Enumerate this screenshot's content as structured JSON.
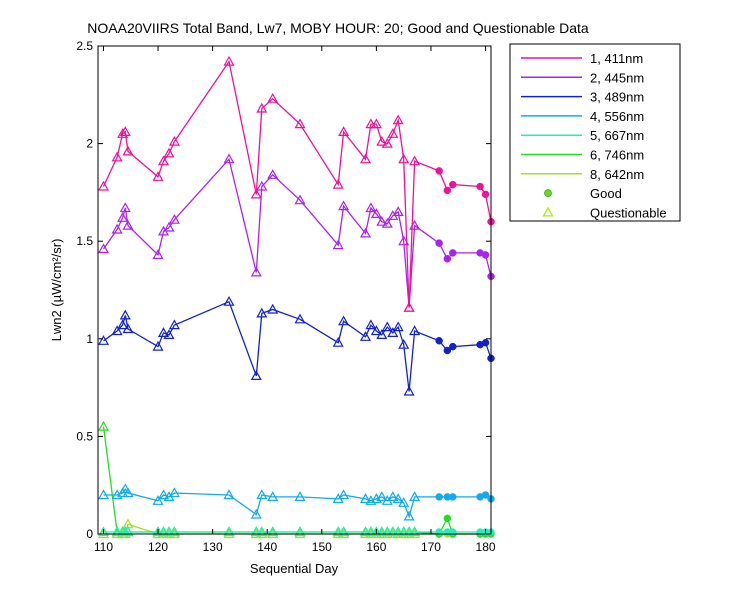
{
  "chart_data": {
    "type": "line",
    "title": "NOAA20VIIRS Total Band, Lw7, MOBY HOUR: 20;  Good and Questionable Data",
    "xlabel": "Sequential Day",
    "ylabel": "Lwn2 (µW/cm²/sr)",
    "xlim": [
      109,
      181
    ],
    "ylim": [
      0,
      2.5
    ],
    "xticks": [
      110,
      120,
      130,
      140,
      150,
      160,
      170,
      180
    ],
    "yticks": [
      0,
      0.5,
      1,
      1.5,
      2,
      2.5
    ],
    "ytick_labels": [
      "0",
      "0.5",
      "1",
      "1.5",
      "2",
      "2.5"
    ],
    "grid": false,
    "legend_position": "outside-right",
    "markers": {
      "good": "Good",
      "questionable": "Questionable"
    },
    "marker_colors": {
      "good": "#66dd22",
      "questionable": "#aaee00"
    },
    "x": [
      110,
      112.5,
      113.5,
      114,
      114.5,
      120,
      121,
      122,
      123,
      133,
      138,
      139,
      141,
      146,
      153,
      154,
      158,
      159,
      160,
      161,
      162,
      163,
      164,
      165,
      166,
      167,
      171.5,
      173,
      174,
      179,
      180,
      181
    ],
    "quality": [
      "Q",
      "Q",
      "Q",
      "Q",
      "Q",
      "Q",
      "Q",
      "Q",
      "Q",
      "Q",
      "Q",
      "Q",
      "Q",
      "Q",
      "Q",
      "Q",
      "Q",
      "Q",
      "Q",
      "Q",
      "Q",
      "Q",
      "Q",
      "Q",
      "Q",
      "Q",
      "G",
      "G",
      "G",
      "G",
      "G",
      "G"
    ],
    "series": [
      {
        "name": "1, 411nm",
        "color": "#ee1199",
        "values": [
          1.78,
          1.93,
          2.05,
          2.06,
          1.96,
          1.83,
          1.91,
          1.95,
          2.01,
          2.42,
          1.74,
          2.18,
          2.23,
          2.1,
          1.79,
          2.06,
          1.92,
          2.1,
          2.1,
          2.01,
          2.0,
          2.05,
          2.12,
          1.92,
          1.16,
          1.91,
          1.86,
          1.76,
          1.79,
          1.78,
          1.74,
          1.6
        ]
      },
      {
        "name": "2, 445nm",
        "color": "#aa22ee",
        "values": [
          1.46,
          1.56,
          1.62,
          1.67,
          1.58,
          1.43,
          1.55,
          1.57,
          1.61,
          1.92,
          1.34,
          1.78,
          1.84,
          1.71,
          1.48,
          1.68,
          1.54,
          1.67,
          1.64,
          1.6,
          1.59,
          1.63,
          1.65,
          1.5,
          1.16,
          1.58,
          1.49,
          1.41,
          1.44,
          1.44,
          1.43,
          1.32
        ]
      },
      {
        "name": "3, 489nm",
        "color": "#1122cc",
        "values": [
          0.99,
          1.04,
          1.07,
          1.12,
          1.05,
          0.96,
          1.03,
          1.02,
          1.07,
          1.19,
          0.81,
          1.13,
          1.15,
          1.1,
          0.98,
          1.09,
          1.01,
          1.07,
          1.04,
          1.02,
          1.06,
          1.03,
          1.06,
          0.97,
          0.73,
          1.04,
          0.99,
          0.94,
          0.96,
          0.97,
          0.98,
          0.9
        ]
      },
      {
        "name": "4, 556nm",
        "color": "#11aaee",
        "values": [
          0.2,
          0.2,
          0.21,
          0.23,
          0.21,
          0.17,
          0.2,
          0.19,
          0.21,
          0.2,
          0.1,
          0.2,
          0.19,
          0.19,
          0.18,
          0.2,
          0.18,
          0.17,
          0.18,
          0.19,
          0.17,
          0.19,
          0.18,
          0.16,
          0.09,
          0.19,
          0.19,
          0.19,
          0.19,
          0.19,
          0.2,
          0.18
        ]
      },
      {
        "name": "5, 667nm",
        "color": "#22eebb",
        "values": [
          0.01,
          0.01,
          0.01,
          0.01,
          0.01,
          0.01,
          0.01,
          0.01,
          0.01,
          0.01,
          0.01,
          0.01,
          0.01,
          0.01,
          0.01,
          0.01,
          0.01,
          0.01,
          0.01,
          0.01,
          0.01,
          0.01,
          0.01,
          0.01,
          0.01,
          0.01,
          0.01,
          0.01,
          0.01,
          0.01,
          0.01,
          0.01
        ]
      },
      {
        "name": "6, 746nm",
        "color": "#22dd22",
        "values": [
          0.55,
          0.01,
          0.01,
          0.01,
          0.01,
          0.01,
          0.01,
          0.01,
          0.01,
          0.01,
          0.01,
          0.01,
          0.01,
          0.01,
          0.01,
          0.01,
          0.01,
          0.01,
          0.01,
          0.01,
          0.01,
          0.01,
          0.01,
          0.01,
          0.01,
          0.01,
          0.0,
          0.08,
          0.0,
          0.0,
          0.0,
          0.0
        ]
      },
      {
        "name": "8, 642nm",
        "color": "#aadd22",
        "values": [
          0.0,
          0.0,
          0.0,
          0.0,
          0.05,
          0.0,
          0.0,
          0.0,
          0.0,
          0.0,
          0.0,
          0.0,
          0.0,
          0.0,
          0.0,
          0.0,
          0.0,
          0.0,
          0.0,
          0.0,
          0.0,
          0.0,
          0.0,
          0.0,
          0.0,
          0.0,
          0.0,
          0.0,
          0.0,
          0.0,
          0.0,
          0.0
        ]
      }
    ]
  }
}
